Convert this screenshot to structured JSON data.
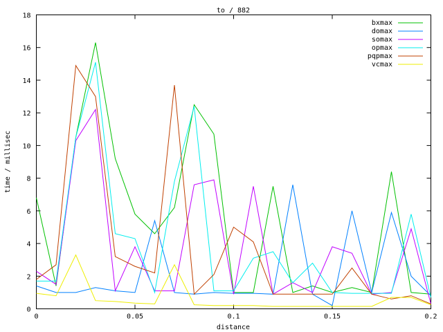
{
  "chart_data": {
    "type": "line",
    "title": "to / 882",
    "xlabel": "distance",
    "ylabel": "time / millisec",
    "xlim": [
      0,
      0.2
    ],
    "ylim": [
      0,
      18
    ],
    "xticks": [
      "0",
      "0.05",
      "0.1",
      "0.15",
      "0.2"
    ],
    "yticks": [
      "0",
      "2",
      "4",
      "6",
      "8",
      "10",
      "12",
      "14",
      "16",
      "18"
    ],
    "grid": false,
    "legend_placement": "top-right",
    "x": [
      0,
      0.01,
      0.02,
      0.03,
      0.04,
      0.05,
      0.06,
      0.07,
      0.08,
      0.09,
      0.1,
      0.11,
      0.12,
      0.13,
      0.14,
      0.15,
      0.16,
      0.17,
      0.18,
      0.19,
      0.2
    ],
    "series": [
      {
        "name": "bxmax",
        "color": "#00c000",
        "values": [
          6.8,
          1.4,
          10.5,
          16.3,
          9.2,
          5.8,
          4.6,
          6.2,
          12.5,
          10.7,
          1.0,
          1.0,
          7.5,
          1.0,
          1.4,
          1.0,
          1.3,
          1.0,
          8.4,
          1.0,
          0.9
        ]
      },
      {
        "name": "domax",
        "color": "#0080ff",
        "values": [
          1.4,
          1.0,
          1.0,
          1.3,
          1.1,
          1.0,
          5.4,
          1.0,
          0.9,
          1.0,
          0.95,
          0.95,
          0.9,
          7.6,
          0.9,
          0.2,
          6.0,
          1.0,
          5.9,
          2.0,
          0.8
        ]
      },
      {
        "name": "somax",
        "color": "#c000ff",
        "values": [
          2.3,
          1.5,
          10.3,
          12.2,
          1.1,
          3.8,
          1.1,
          1.1,
          7.6,
          7.9,
          0.9,
          7.5,
          0.9,
          1.6,
          1.0,
          3.8,
          3.4,
          0.9,
          1.0,
          4.9,
          0.3
        ]
      },
      {
        "name": "opmax",
        "color": "#00eeee",
        "values": [
          1.7,
          1.7,
          10.5,
          15.1,
          4.6,
          4.3,
          1.0,
          7.8,
          12.4,
          1.1,
          1.1,
          3.1,
          3.5,
          1.6,
          2.8,
          1.0,
          0.95,
          0.95,
          0.95,
          5.8,
          0.7
        ]
      },
      {
        "name": "pqpmax",
        "color": "#c04000",
        "values": [
          1.8,
          2.7,
          14.9,
          13.0,
          3.2,
          2.6,
          2.2,
          13.7,
          0.9,
          2.1,
          5.0,
          4.1,
          0.9,
          0.9,
          0.9,
          0.9,
          2.5,
          0.9,
          0.6,
          0.8,
          0.3
        ]
      },
      {
        "name": "vcmax",
        "color": "#eeee00",
        "values": [
          0.95,
          0.8,
          3.3,
          0.5,
          0.45,
          0.35,
          0.3,
          2.7,
          0.25,
          0.2,
          0.2,
          0.2,
          0.15,
          0.15,
          0.15,
          0.15,
          0.15,
          0.15,
          0.7,
          0.7,
          0.25
        ]
      }
    ]
  }
}
